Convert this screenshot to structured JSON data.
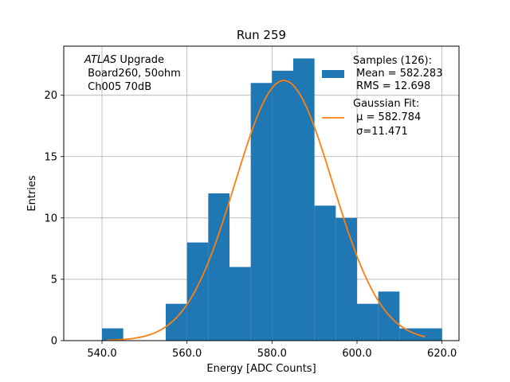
{
  "chart_data": {
    "type": "bar",
    "title": "Run 259",
    "xlabel": "Energy [ADC Counts]",
    "ylabel": "Entries",
    "xlim": [
      531,
      624
    ],
    "ylim": [
      0,
      24
    ],
    "grid": true,
    "x_ticks": [
      540,
      560,
      580,
      600,
      620
    ],
    "x_tick_labels": [
      "540.0",
      "560.0",
      "580.0",
      "600.0",
      "620.0"
    ],
    "y_ticks": [
      0,
      5,
      10,
      15,
      20
    ],
    "y_tick_labels": [
      "0",
      "5",
      "10",
      "15",
      "20"
    ],
    "bin_edges": [
      540,
      545,
      550,
      555,
      560,
      565,
      570,
      575,
      580,
      585,
      590,
      595,
      600,
      605,
      610,
      615,
      620
    ],
    "counts": [
      1,
      0,
      0,
      3,
      8,
      12,
      6,
      21,
      22,
      23,
      11,
      10,
      3,
      4,
      1,
      1
    ],
    "fit": {
      "type": "gaussian",
      "mu": 582.784,
      "sigma": 11.471,
      "amplitude": 21.2,
      "x_range": [
        541,
        616
      ]
    },
    "colors": {
      "histogram": "#1f77b4",
      "fit": "#ff7f0e",
      "grid": "#b0b0b0"
    },
    "legend": {
      "placement": "top-right",
      "entries": [
        {
          "lines": [
            "Samples (126):",
            " Mean = 582.283",
            " RMS = 12.698"
          ]
        },
        {
          "lines": [
            "Gaussian Fit:",
            " μ = 582.784",
            " σ=11.471"
          ]
        }
      ]
    },
    "annotation": {
      "lines": [
        {
          "italic": "ATLAS",
          "rest": " Upgrade"
        },
        {
          "italic": "",
          "rest": " Board260, 50ohm"
        },
        {
          "italic": "",
          "rest": " Ch005 70dB"
        }
      ]
    }
  }
}
